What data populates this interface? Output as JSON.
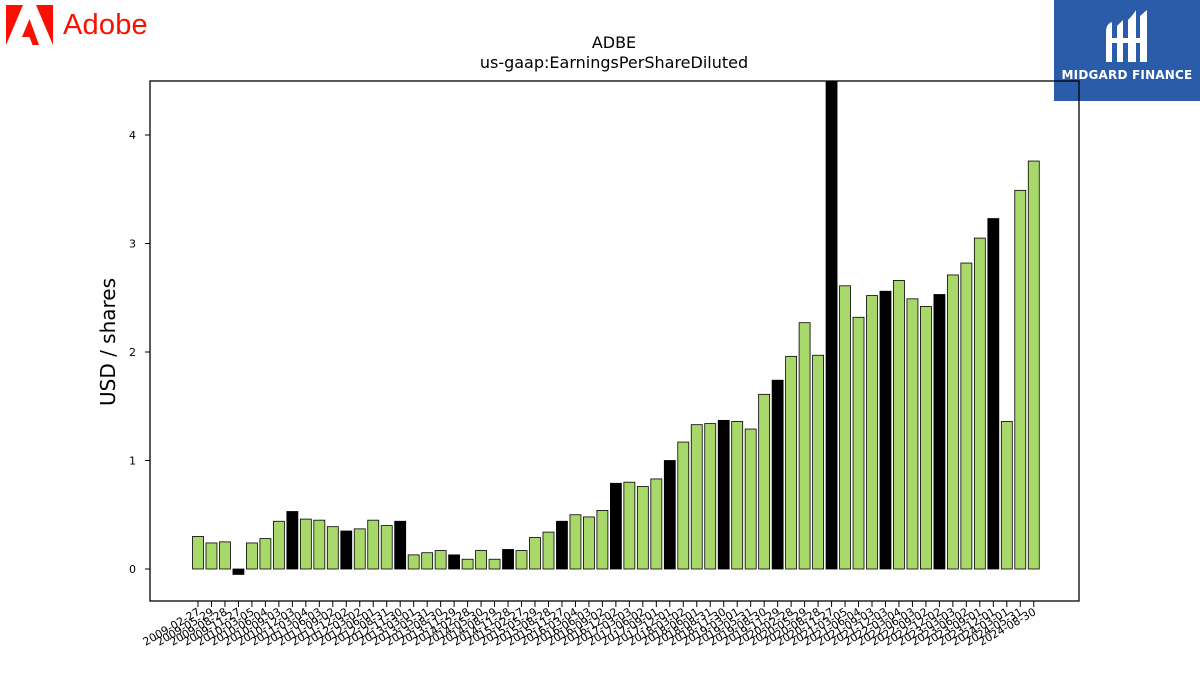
{
  "brand": {
    "name": "Adobe",
    "logo_icon": "adobe-logo-icon",
    "color": "#fa0f00"
  },
  "watermark": {
    "name": "MIDGARD FINANCE",
    "logo_icon": "midgard-finance-logo-icon",
    "background": "#2a5caa"
  },
  "chart_data": {
    "type": "bar",
    "title": "ADBE",
    "subtitle": "us-gaap:EarningsPerShareDiluted",
    "xlabel": "",
    "ylabel": "USD / shares",
    "ylim": [
      -0.3,
      4.5
    ],
    "yticks": [
      0,
      1,
      2,
      3,
      4
    ],
    "grid": false,
    "colors": {
      "quarterly": "#a8d86a",
      "annual": "#000000"
    },
    "categories": [
      "2009-02-27",
      "2009-05-29",
      "2009-08-28",
      "2009-11-27",
      "2010-03-05",
      "2010-06-04",
      "2010-09-03",
      "2010-12-03",
      "2011-03-04",
      "2011-06-03",
      "2011-09-02",
      "2011-12-02",
      "2012-03-02",
      "2012-06-01",
      "2012-08-31",
      "2012-11-30",
      "2013-03-01",
      "2013-05-31",
      "2013-08-30",
      "2013-11-29",
      "2014-02-28",
      "2014-05-30",
      "2014-08-29",
      "2014-11-28",
      "2015-02-27",
      "2015-05-29",
      "2015-08-28",
      "2015-11-27",
      "2016-03-04",
      "2016-06-03",
      "2016-09-02",
      "2016-12-02",
      "2017-03-03",
      "2017-06-02",
      "2017-09-01",
      "2017-12-01",
      "2018-03-02",
      "2018-06-01",
      "2018-08-31",
      "2018-11-30",
      "2019-03-01",
      "2019-05-31",
      "2019-08-30",
      "2019-11-29",
      "2020-02-28",
      "2020-05-29",
      "2020-08-28",
      "2020-11-27",
      "2021-03-05",
      "2021-06-04",
      "2021-09-03",
      "2021-12-03",
      "2022-03-04",
      "2022-06-03",
      "2022-09-02",
      "2022-12-02",
      "2023-03-03",
      "2023-06-02",
      "2023-09-01",
      "2023-12-01",
      "2024-03-01",
      "2024-05-31",
      "2024-08-30"
    ],
    "values": [
      0.3,
      0.24,
      0.25,
      -0.05,
      0.24,
      0.28,
      0.44,
      0.53,
      0.46,
      0.45,
      0.39,
      0.35,
      0.37,
      0.45,
      0.4,
      0.44,
      0.13,
      0.15,
      0.17,
      0.13,
      0.09,
      0.17,
      0.09,
      0.18,
      0.17,
      0.29,
      0.34,
      0.44,
      0.5,
      0.48,
      0.54,
      0.79,
      0.8,
      0.76,
      0.83,
      1.0,
      1.17,
      1.33,
      1.34,
      1.37,
      1.36,
      1.29,
      1.61,
      1.74,
      1.96,
      2.27,
      1.97,
      4.57,
      2.61,
      2.32,
      2.52,
      2.56,
      2.66,
      2.49,
      2.42,
      2.53,
      2.71,
      2.82,
      3.05,
      3.23,
      1.36,
      3.49,
      3.76
    ],
    "annual": [
      false,
      false,
      false,
      true,
      false,
      false,
      false,
      true,
      false,
      false,
      false,
      true,
      false,
      false,
      false,
      true,
      false,
      false,
      false,
      true,
      false,
      false,
      false,
      true,
      false,
      false,
      false,
      true,
      false,
      false,
      false,
      true,
      false,
      false,
      false,
      true,
      false,
      false,
      false,
      true,
      false,
      false,
      false,
      true,
      false,
      false,
      false,
      true,
      false,
      false,
      false,
      true,
      false,
      false,
      false,
      true,
      false,
      false,
      false,
      true,
      false,
      false,
      false
    ]
  }
}
